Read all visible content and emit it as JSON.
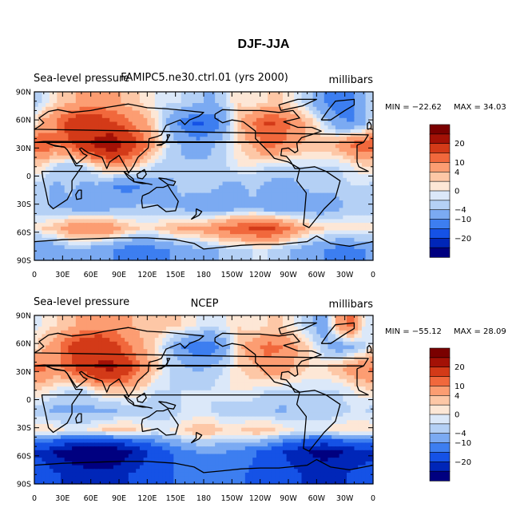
{
  "title": "DJF-JJA",
  "chart_data": [
    {
      "type": "heatmap",
      "left_title": "Sea-level pressure",
      "center_title": "FAMIPC5.ne30.ctrl.01 (yrs 2000)",
      "right_title": "millibars",
      "min_label": "MIN = −22.62",
      "max_label": "MAX =  34.03",
      "min_value": -22.62,
      "max_value": 34.03,
      "xticks": [
        "0",
        "30E",
        "60E",
        "90E",
        "120E",
        "150E",
        "180",
        "150W",
        "120W",
        "90W",
        "60W",
        "30W",
        "0"
      ],
      "yticks": [
        "90N",
        "60N",
        "30N",
        "0",
        "30S",
        "60S",
        "90S"
      ],
      "x_range_deg_east": [
        0,
        360
      ],
      "y_range_deg_north": [
        -90,
        90
      ],
      "field": [
        [
          -2,
          2,
          4,
          6,
          8,
          6,
          4,
          2,
          0,
          -2,
          -2,
          -4,
          -6,
          -2,
          2,
          0,
          2,
          2,
          0,
          -4,
          -10,
          -14,
          -12,
          -4
        ],
        [
          6,
          10,
          18,
          22,
          20,
          16,
          12,
          8,
          2,
          -6,
          -12,
          -16,
          -14,
          -8,
          4,
          10,
          16,
          14,
          8,
          4,
          -2,
          -8,
          -10,
          -6
        ],
        [
          16,
          10,
          14,
          22,
          28,
          34,
          24,
          14,
          6,
          -2,
          -6,
          -8,
          -6,
          -2,
          2,
          6,
          12,
          10,
          6,
          4,
          4,
          6,
          12,
          14
        ],
        [
          2,
          -2,
          -4,
          -2,
          2,
          6,
          6,
          2,
          -2,
          -4,
          -4,
          -4,
          -4,
          -2,
          0,
          0,
          -2,
          -2,
          -2,
          -2,
          -2,
          -2,
          0,
          2
        ],
        [
          -4,
          -6,
          -4,
          -6,
          -6,
          -10,
          -12,
          -10,
          -8,
          -6,
          -4,
          -4,
          -4,
          -6,
          -6,
          -4,
          -6,
          -8,
          -6,
          -4,
          -4,
          -4,
          -2,
          -2
        ],
        [
          -4,
          -6,
          -6,
          -8,
          -8,
          -6,
          -6,
          -4,
          -4,
          -6,
          -6,
          -8,
          -8,
          -8,
          -6,
          -6,
          -8,
          -10,
          -8,
          -8,
          -8,
          -6,
          -4,
          -4
        ],
        [
          2,
          4,
          8,
          10,
          10,
          8,
          4,
          2,
          2,
          4,
          6,
          6,
          8,
          12,
          14,
          16,
          18,
          14,
          8,
          4,
          2,
          2,
          2,
          2
        ],
        [
          -10,
          -8,
          -6,
          -6,
          -8,
          -10,
          -12,
          -14,
          -12,
          -10,
          -8,
          -6,
          -6,
          -4,
          -4,
          -2,
          -2,
          -4,
          -6,
          -8,
          -10,
          -12,
          -12,
          -10
        ]
      ]
    },
    {
      "type": "heatmap",
      "left_title": "Sea-level pressure",
      "center_title": "NCEP",
      "right_title": "millibars",
      "min_label": "MIN = −55.12",
      "max_label": "MAX =  28.09",
      "min_value": -55.12,
      "max_value": 28.09,
      "xticks": [
        "0",
        "30E",
        "60E",
        "90E",
        "120E",
        "150E",
        "180",
        "150W",
        "120W",
        "90W",
        "60W",
        "30W",
        "0"
      ],
      "yticks": [
        "90N",
        "60N",
        "30N",
        "0",
        "30S",
        "60S",
        "90S"
      ],
      "x_range_deg_east": [
        0,
        360
      ],
      "y_range_deg_north": [
        -90,
        90
      ],
      "field": [
        [
          0,
          2,
          4,
          6,
          8,
          8,
          6,
          4,
          4,
          2,
          2,
          0,
          -2,
          0,
          2,
          0,
          2,
          2,
          0,
          -4,
          -8,
          6,
          12,
          -2
        ],
        [
          4,
          8,
          16,
          22,
          24,
          18,
          12,
          6,
          2,
          -4,
          -10,
          -14,
          -14,
          -8,
          4,
          8,
          12,
          10,
          6,
          2,
          -4,
          -8,
          -6,
          -2
        ],
        [
          12,
          8,
          12,
          20,
          26,
          28,
          20,
          10,
          4,
          -2,
          -4,
          -6,
          -4,
          -2,
          2,
          4,
          8,
          8,
          4,
          2,
          2,
          4,
          8,
          10
        ],
        [
          2,
          0,
          -2,
          -2,
          2,
          4,
          4,
          2,
          -2,
          -2,
          -2,
          -2,
          -2,
          0,
          0,
          0,
          -2,
          -2,
          -2,
          -2,
          -2,
          -2,
          0,
          2
        ],
        [
          -4,
          -6,
          -6,
          -6,
          -6,
          -6,
          -4,
          -4,
          -4,
          -4,
          -2,
          -2,
          -2,
          -4,
          -4,
          -4,
          -4,
          -6,
          -4,
          -4,
          -4,
          -4,
          -2,
          -2
        ],
        [
          2,
          2,
          0,
          0,
          2,
          4,
          4,
          2,
          0,
          0,
          2,
          4,
          4,
          2,
          2,
          4,
          4,
          2,
          0,
          0,
          0,
          2,
          2,
          2
        ],
        [
          -26,
          -36,
          -42,
          -48,
          -52,
          -48,
          -40,
          -30,
          -22,
          -16,
          -12,
          -10,
          -10,
          -10,
          -12,
          -14,
          -18,
          -24,
          -30,
          -36,
          -40,
          -38,
          -32,
          -28
        ],
        [
          -20,
          -24,
          -28,
          -30,
          -32,
          -30,
          -26,
          -22,
          -18,
          -16,
          -14,
          -12,
          -12,
          -12,
          -14,
          -16,
          -18,
          -20,
          -24,
          -26,
          -28,
          -26,
          -24,
          -22
        ]
      ]
    }
  ],
  "colorbar": {
    "labels": [
      "20",
      "10",
      "4",
      "0",
      "−4",
      "−10",
      "−20"
    ],
    "levels": [
      -35,
      -25,
      -15,
      -10,
      -5,
      -2,
      0,
      2,
      5,
      10,
      15,
      25,
      35
    ],
    "colors": [
      "#000080",
      "#0026b8",
      "#1552e6",
      "#3d7ef0",
      "#7baaf2",
      "#b4d0f5",
      "#dbe8f9",
      "#fde7d6",
      "#fdc7a6",
      "#fc9d72",
      "#f1683c",
      "#d33a18",
      "#a31106",
      "#7a0000"
    ]
  }
}
